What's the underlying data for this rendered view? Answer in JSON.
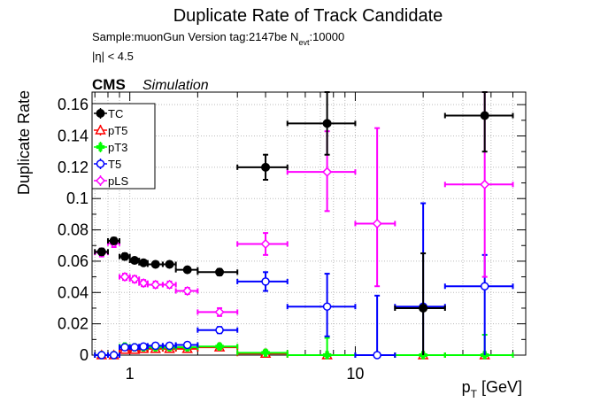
{
  "header": {
    "title": "Duplicate Rate of Track Candidate",
    "sample_line": "Sample:muonGun   Version tag:2147be  N",
    "sample_sub": "evt",
    "sample_tail": ":10000",
    "eta_cut": "|η| < 4.5",
    "cms_label": "CMS",
    "simulation_label": "Simulation"
  },
  "chart_data": {
    "type": "scatter",
    "title": "Duplicate Rate of Track Candidate",
    "xlabel": "p",
    "xlabel_sub": "T",
    "xlabel_unit": " [GeV]",
    "ylabel": "Duplicate Rate",
    "xscale": "log",
    "xlim": [
      0.68,
      57
    ],
    "ylim": [
      0,
      0.168
    ],
    "grid": true,
    "legend_placement": "top-left",
    "xticks": [
      {
        "value": 1,
        "label": "1"
      },
      {
        "value": 10,
        "label": "10"
      }
    ],
    "yticks": [
      {
        "value": 0,
        "label": "0"
      },
      {
        "value": 0.02,
        "label": "0.02"
      },
      {
        "value": 0.04,
        "label": "0.04"
      },
      {
        "value": 0.06,
        "label": "0.06"
      },
      {
        "value": 0.08,
        "label": "0.08"
      },
      {
        "value": 0.1,
        "label": "0.1"
      },
      {
        "value": 0.12,
        "label": "0.12"
      },
      {
        "value": 0.14,
        "label": "0.14"
      },
      {
        "value": 0.16,
        "label": "0.16"
      }
    ],
    "series": [
      {
        "name": "TC",
        "color": "#000000",
        "marker": "circle-filled",
        "points": [
          {
            "x": 0.75,
            "xlo": 0.7,
            "xhi": 0.8,
            "y": 0.066,
            "ylo": 0.064,
            "yhi": 0.068
          },
          {
            "x": 0.85,
            "xlo": 0.8,
            "xhi": 0.9,
            "y": 0.073,
            "ylo": 0.071,
            "yhi": 0.075
          },
          {
            "x": 0.95,
            "xlo": 0.9,
            "xhi": 1.0,
            "y": 0.063,
            "ylo": 0.061,
            "yhi": 0.065
          },
          {
            "x": 1.05,
            "xlo": 1.0,
            "xhi": 1.1,
            "y": 0.0605,
            "ylo": 0.059,
            "yhi": 0.062
          },
          {
            "x": 1.15,
            "xlo": 1.1,
            "xhi": 1.2,
            "y": 0.059,
            "ylo": 0.0575,
            "yhi": 0.0605
          },
          {
            "x": 1.3,
            "xlo": 1.2,
            "xhi": 1.4,
            "y": 0.058,
            "ylo": 0.0565,
            "yhi": 0.0595
          },
          {
            "x": 1.5,
            "xlo": 1.4,
            "xhi": 1.6,
            "y": 0.058,
            "ylo": 0.0565,
            "yhi": 0.0595
          },
          {
            "x": 1.8,
            "xlo": 1.6,
            "xhi": 2.0,
            "y": 0.0545,
            "ylo": 0.053,
            "yhi": 0.056
          },
          {
            "x": 2.5,
            "xlo": 2.0,
            "xhi": 3.0,
            "y": 0.053,
            "ylo": 0.051,
            "yhi": 0.055
          },
          {
            "x": 4.0,
            "xlo": 3.0,
            "xhi": 5.0,
            "y": 0.12,
            "ylo": 0.112,
            "yhi": 0.128
          },
          {
            "x": 7.5,
            "xlo": 5.0,
            "xhi": 10.0,
            "y": 0.148,
            "ylo": 0.128,
            "yhi": 0.168
          },
          {
            "x": 20.0,
            "xlo": 15.0,
            "xhi": 25.0,
            "y": 0.03,
            "ylo": 0.0,
            "yhi": 0.065
          },
          {
            "x": 37.5,
            "xlo": 25.0,
            "xhi": 50.0,
            "y": 0.153,
            "ylo": 0.13,
            "yhi": 0.168
          }
        ]
      },
      {
        "name": "pT5",
        "color": "#ff0000",
        "marker": "triangle-open",
        "points": [
          {
            "x": 0.75,
            "xlo": 0.7,
            "xhi": 0.8,
            "y": 0.0,
            "ylo": 0.0,
            "yhi": 0.0
          },
          {
            "x": 0.85,
            "xlo": 0.8,
            "xhi": 0.9,
            "y": 0.0,
            "ylo": 0.0,
            "yhi": 0.0
          },
          {
            "x": 0.95,
            "xlo": 0.9,
            "xhi": 1.0,
            "y": 0.0035,
            "ylo": 0.002,
            "yhi": 0.005
          },
          {
            "x": 1.05,
            "xlo": 1.0,
            "xhi": 1.1,
            "y": 0.0035,
            "ylo": 0.002,
            "yhi": 0.005
          },
          {
            "x": 1.15,
            "xlo": 1.1,
            "xhi": 1.2,
            "y": 0.004,
            "ylo": 0.0025,
            "yhi": 0.0055
          },
          {
            "x": 1.3,
            "xlo": 1.2,
            "xhi": 1.4,
            "y": 0.004,
            "ylo": 0.0025,
            "yhi": 0.0055
          },
          {
            "x": 1.5,
            "xlo": 1.4,
            "xhi": 1.6,
            "y": 0.004,
            "ylo": 0.0025,
            "yhi": 0.0055
          },
          {
            "x": 1.8,
            "xlo": 1.6,
            "xhi": 2.0,
            "y": 0.004,
            "ylo": 0.0025,
            "yhi": 0.0055
          },
          {
            "x": 2.5,
            "xlo": 2.0,
            "xhi": 3.0,
            "y": 0.005,
            "ylo": 0.0035,
            "yhi": 0.0065
          },
          {
            "x": 4.0,
            "xlo": 3.0,
            "xhi": 5.0,
            "y": 0.001,
            "ylo": 0.0,
            "yhi": 0.003
          },
          {
            "x": 7.5,
            "xlo": 5.0,
            "xhi": 10.0,
            "y": 0.0,
            "ylo": 0.0,
            "yhi": 0.0
          },
          {
            "x": 20.0,
            "xlo": 15.0,
            "xhi": 25.0,
            "y": 0.0,
            "ylo": 0.0,
            "yhi": 0.0
          },
          {
            "x": 37.5,
            "xlo": 25.0,
            "xhi": 50.0,
            "y": 0.0,
            "ylo": 0.0,
            "yhi": 0.0
          }
        ]
      },
      {
        "name": "pT3",
        "color": "#00ff00",
        "marker": "cross-filled",
        "points": [
          {
            "x": 0.75,
            "xlo": 0.7,
            "xhi": 0.8,
            "y": 0.0,
            "ylo": 0.0,
            "yhi": 0.001
          },
          {
            "x": 0.85,
            "xlo": 0.8,
            "xhi": 0.9,
            "y": 0.0,
            "ylo": 0.0,
            "yhi": 0.001
          },
          {
            "x": 0.95,
            "xlo": 0.9,
            "xhi": 1.0,
            "y": 0.0055,
            "ylo": 0.004,
            "yhi": 0.007
          },
          {
            "x": 1.05,
            "xlo": 1.0,
            "xhi": 1.1,
            "y": 0.005,
            "ylo": 0.0035,
            "yhi": 0.0065
          },
          {
            "x": 1.15,
            "xlo": 1.1,
            "xhi": 1.2,
            "y": 0.005,
            "ylo": 0.0035,
            "yhi": 0.0065
          },
          {
            "x": 1.3,
            "xlo": 1.2,
            "xhi": 1.4,
            "y": 0.005,
            "ylo": 0.0035,
            "yhi": 0.0065
          },
          {
            "x": 1.5,
            "xlo": 1.4,
            "xhi": 1.6,
            "y": 0.005,
            "ylo": 0.0035,
            "yhi": 0.0065
          },
          {
            "x": 1.8,
            "xlo": 1.6,
            "xhi": 2.0,
            "y": 0.005,
            "ylo": 0.0035,
            "yhi": 0.0065
          },
          {
            "x": 2.5,
            "xlo": 2.0,
            "xhi": 3.0,
            "y": 0.0055,
            "ylo": 0.004,
            "yhi": 0.007
          },
          {
            "x": 4.0,
            "xlo": 3.0,
            "xhi": 5.0,
            "y": 0.0015,
            "ylo": 0.0,
            "yhi": 0.003
          },
          {
            "x": 7.5,
            "xlo": 5.0,
            "xhi": 10.0,
            "y": 0.0,
            "ylo": 0.0,
            "yhi": 0.011
          },
          {
            "x": 20.0,
            "xlo": 15.0,
            "xhi": 25.0,
            "y": 0.0,
            "ylo": 0.0,
            "yhi": 0.0
          },
          {
            "x": 37.5,
            "xlo": 25.0,
            "xhi": 50.0,
            "y": 0.0,
            "ylo": 0.0,
            "yhi": 0.013
          }
        ]
      },
      {
        "name": "T5",
        "color": "#0000ff",
        "marker": "circle-open",
        "points": [
          {
            "x": 0.75,
            "xlo": 0.7,
            "xhi": 0.8,
            "y": 0.0,
            "ylo": 0.0,
            "yhi": 0.001
          },
          {
            "x": 0.85,
            "xlo": 0.8,
            "xhi": 0.9,
            "y": 0.0,
            "ylo": 0.0,
            "yhi": 0.001
          },
          {
            "x": 0.95,
            "xlo": 0.9,
            "xhi": 1.0,
            "y": 0.005,
            "ylo": 0.0035,
            "yhi": 0.0065
          },
          {
            "x": 1.05,
            "xlo": 1.0,
            "xhi": 1.1,
            "y": 0.005,
            "ylo": 0.0035,
            "yhi": 0.0065
          },
          {
            "x": 1.15,
            "xlo": 1.1,
            "xhi": 1.2,
            "y": 0.0055,
            "ylo": 0.004,
            "yhi": 0.007
          },
          {
            "x": 1.3,
            "xlo": 1.2,
            "xhi": 1.4,
            "y": 0.006,
            "ylo": 0.0045,
            "yhi": 0.0075
          },
          {
            "x": 1.5,
            "xlo": 1.4,
            "xhi": 1.6,
            "y": 0.006,
            "ylo": 0.0045,
            "yhi": 0.0075
          },
          {
            "x": 1.8,
            "xlo": 1.6,
            "xhi": 2.0,
            "y": 0.0065,
            "ylo": 0.005,
            "yhi": 0.008
          },
          {
            "x": 2.5,
            "xlo": 2.0,
            "xhi": 3.0,
            "y": 0.016,
            "ylo": 0.014,
            "yhi": 0.018
          },
          {
            "x": 4.0,
            "xlo": 3.0,
            "xhi": 5.0,
            "y": 0.047,
            "ylo": 0.041,
            "yhi": 0.053
          },
          {
            "x": 7.5,
            "xlo": 5.0,
            "xhi": 10.0,
            "y": 0.031,
            "ylo": 0.012,
            "yhi": 0.052
          },
          {
            "x": 12.5,
            "xlo": 10.0,
            "xhi": 15.0,
            "y": 0.0,
            "ylo": 0.0,
            "yhi": 0.038
          },
          {
            "x": 20.0,
            "xlo": 15.0,
            "xhi": 25.0,
            "y": 0.031,
            "ylo": 0.0,
            "yhi": 0.097
          },
          {
            "x": 37.5,
            "xlo": 25.0,
            "xhi": 50.0,
            "y": 0.044,
            "ylo": 0.0,
            "yhi": 0.064
          }
        ]
      },
      {
        "name": "pLS",
        "color": "#ff00ff",
        "marker": "diamond-open",
        "points": [
          {
            "x": 0.75,
            "xlo": 0.7,
            "xhi": 0.8,
            "y": 0.0655,
            "ylo": 0.063,
            "yhi": 0.068
          },
          {
            "x": 0.85,
            "xlo": 0.8,
            "xhi": 0.9,
            "y": 0.0715,
            "ylo": 0.069,
            "yhi": 0.074
          },
          {
            "x": 0.95,
            "xlo": 0.9,
            "xhi": 1.0,
            "y": 0.05,
            "ylo": 0.048,
            "yhi": 0.052
          },
          {
            "x": 1.05,
            "xlo": 1.0,
            "xhi": 1.1,
            "y": 0.0485,
            "ylo": 0.0465,
            "yhi": 0.0505
          },
          {
            "x": 1.15,
            "xlo": 1.1,
            "xhi": 1.2,
            "y": 0.046,
            "ylo": 0.044,
            "yhi": 0.048
          },
          {
            "x": 1.3,
            "xlo": 1.2,
            "xhi": 1.4,
            "y": 0.045,
            "ylo": 0.043,
            "yhi": 0.047
          },
          {
            "x": 1.5,
            "xlo": 1.4,
            "xhi": 1.6,
            "y": 0.045,
            "ylo": 0.043,
            "yhi": 0.047
          },
          {
            "x": 1.8,
            "xlo": 1.6,
            "xhi": 2.0,
            "y": 0.041,
            "ylo": 0.039,
            "yhi": 0.043
          },
          {
            "x": 2.5,
            "xlo": 2.0,
            "xhi": 3.0,
            "y": 0.0275,
            "ylo": 0.025,
            "yhi": 0.03
          },
          {
            "x": 4.0,
            "xlo": 3.0,
            "xhi": 5.0,
            "y": 0.071,
            "ylo": 0.064,
            "yhi": 0.078
          },
          {
            "x": 7.5,
            "xlo": 5.0,
            "xhi": 10.0,
            "y": 0.117,
            "ylo": 0.092,
            "yhi": 0.143
          },
          {
            "x": 12.5,
            "xlo": 10.0,
            "xhi": 15.0,
            "y": 0.084,
            "ylo": 0.044,
            "yhi": 0.145
          },
          {
            "x": 37.5,
            "xlo": 25.0,
            "xhi": 50.0,
            "y": 0.109,
            "ylo": 0.05,
            "yhi": 0.168
          }
        ]
      }
    ]
  }
}
